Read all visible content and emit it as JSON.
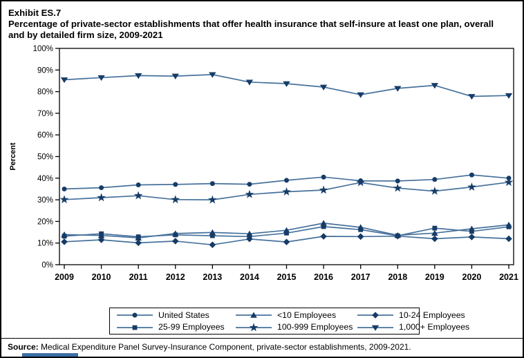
{
  "window": {
    "background": "#ffffff",
    "border_color": "#000000"
  },
  "title": {
    "exhibit": "Exhibit ES.7",
    "line1": "Percentage of private-sector establishments that offer health insurance that self-insure at least one plan, overall",
    "line2": "and by detailed firm size, 2009-2021"
  },
  "source": {
    "label": "Source:",
    "text": " Medical Expenditure Panel Survey-Insurance Component, private-sector establishments, 2009-2021."
  },
  "footer_bar_color": "#3b6ea5",
  "chart_data": {
    "type": "line",
    "title": "Percentage of private-sector establishments that offer health insurance that self-insure at least one plan, overall and by detailed firm size, 2009-2021",
    "xlabel": "",
    "ylabel": "Percent",
    "x": [
      2009,
      2010,
      2011,
      2012,
      2013,
      2014,
      2015,
      2016,
      2017,
      2018,
      2019,
      2020,
      2021
    ],
    "ylim": [
      0,
      100
    ],
    "ytick_step": 10,
    "ytick_suffix": "%",
    "grid": false,
    "legend_position": "bottom",
    "colors": {
      "line": "#46719c",
      "marker": "#163c67",
      "axis": "#000000"
    },
    "series": [
      {
        "name": "United States",
        "marker": "circle",
        "values": [
          35.0,
          35.6,
          36.9,
          37.1,
          37.5,
          37.2,
          39.0,
          40.5,
          38.8,
          38.7,
          39.4,
          41.5,
          40.0
        ]
      },
      {
        "name": "<10 Employees",
        "marker": "triangle-up",
        "values": [
          13.9,
          13.5,
          12.4,
          14.4,
          14.9,
          14.3,
          15.9,
          19.2,
          17.3,
          13.6,
          14.6,
          16.6,
          18.4
        ]
      },
      {
        "name": "10-24 Employees",
        "marker": "diamond",
        "values": [
          10.6,
          11.5,
          10.1,
          10.9,
          9.2,
          11.9,
          10.5,
          13.1,
          13.0,
          13.2,
          12.0,
          12.8,
          12.0
        ]
      },
      {
        "name": "25-99 Employees",
        "marker": "square",
        "values": [
          13.2,
          14.3,
          12.9,
          13.8,
          13.4,
          13.0,
          14.6,
          17.6,
          16.2,
          13.4,
          16.9,
          15.4,
          17.5
        ]
      },
      {
        "name": "100-999 Employees",
        "marker": "star",
        "values": [
          30.1,
          31.0,
          31.9,
          30.1,
          30.0,
          32.5,
          33.7,
          34.5,
          38.0,
          35.4,
          34.0,
          35.9,
          38.1
        ]
      },
      {
        "name": "1,000+ Employees",
        "marker": "triangle-down",
        "values": [
          85.5,
          86.5,
          87.4,
          87.2,
          87.9,
          84.4,
          83.7,
          82.1,
          78.6,
          81.5,
          82.9,
          77.8,
          78.2
        ]
      }
    ],
    "legend_order": [
      "United States",
      "<10 Employees",
      "10-24 Employees",
      "25-99 Employees",
      "100-999 Employees",
      "1,000+ Employees"
    ]
  }
}
